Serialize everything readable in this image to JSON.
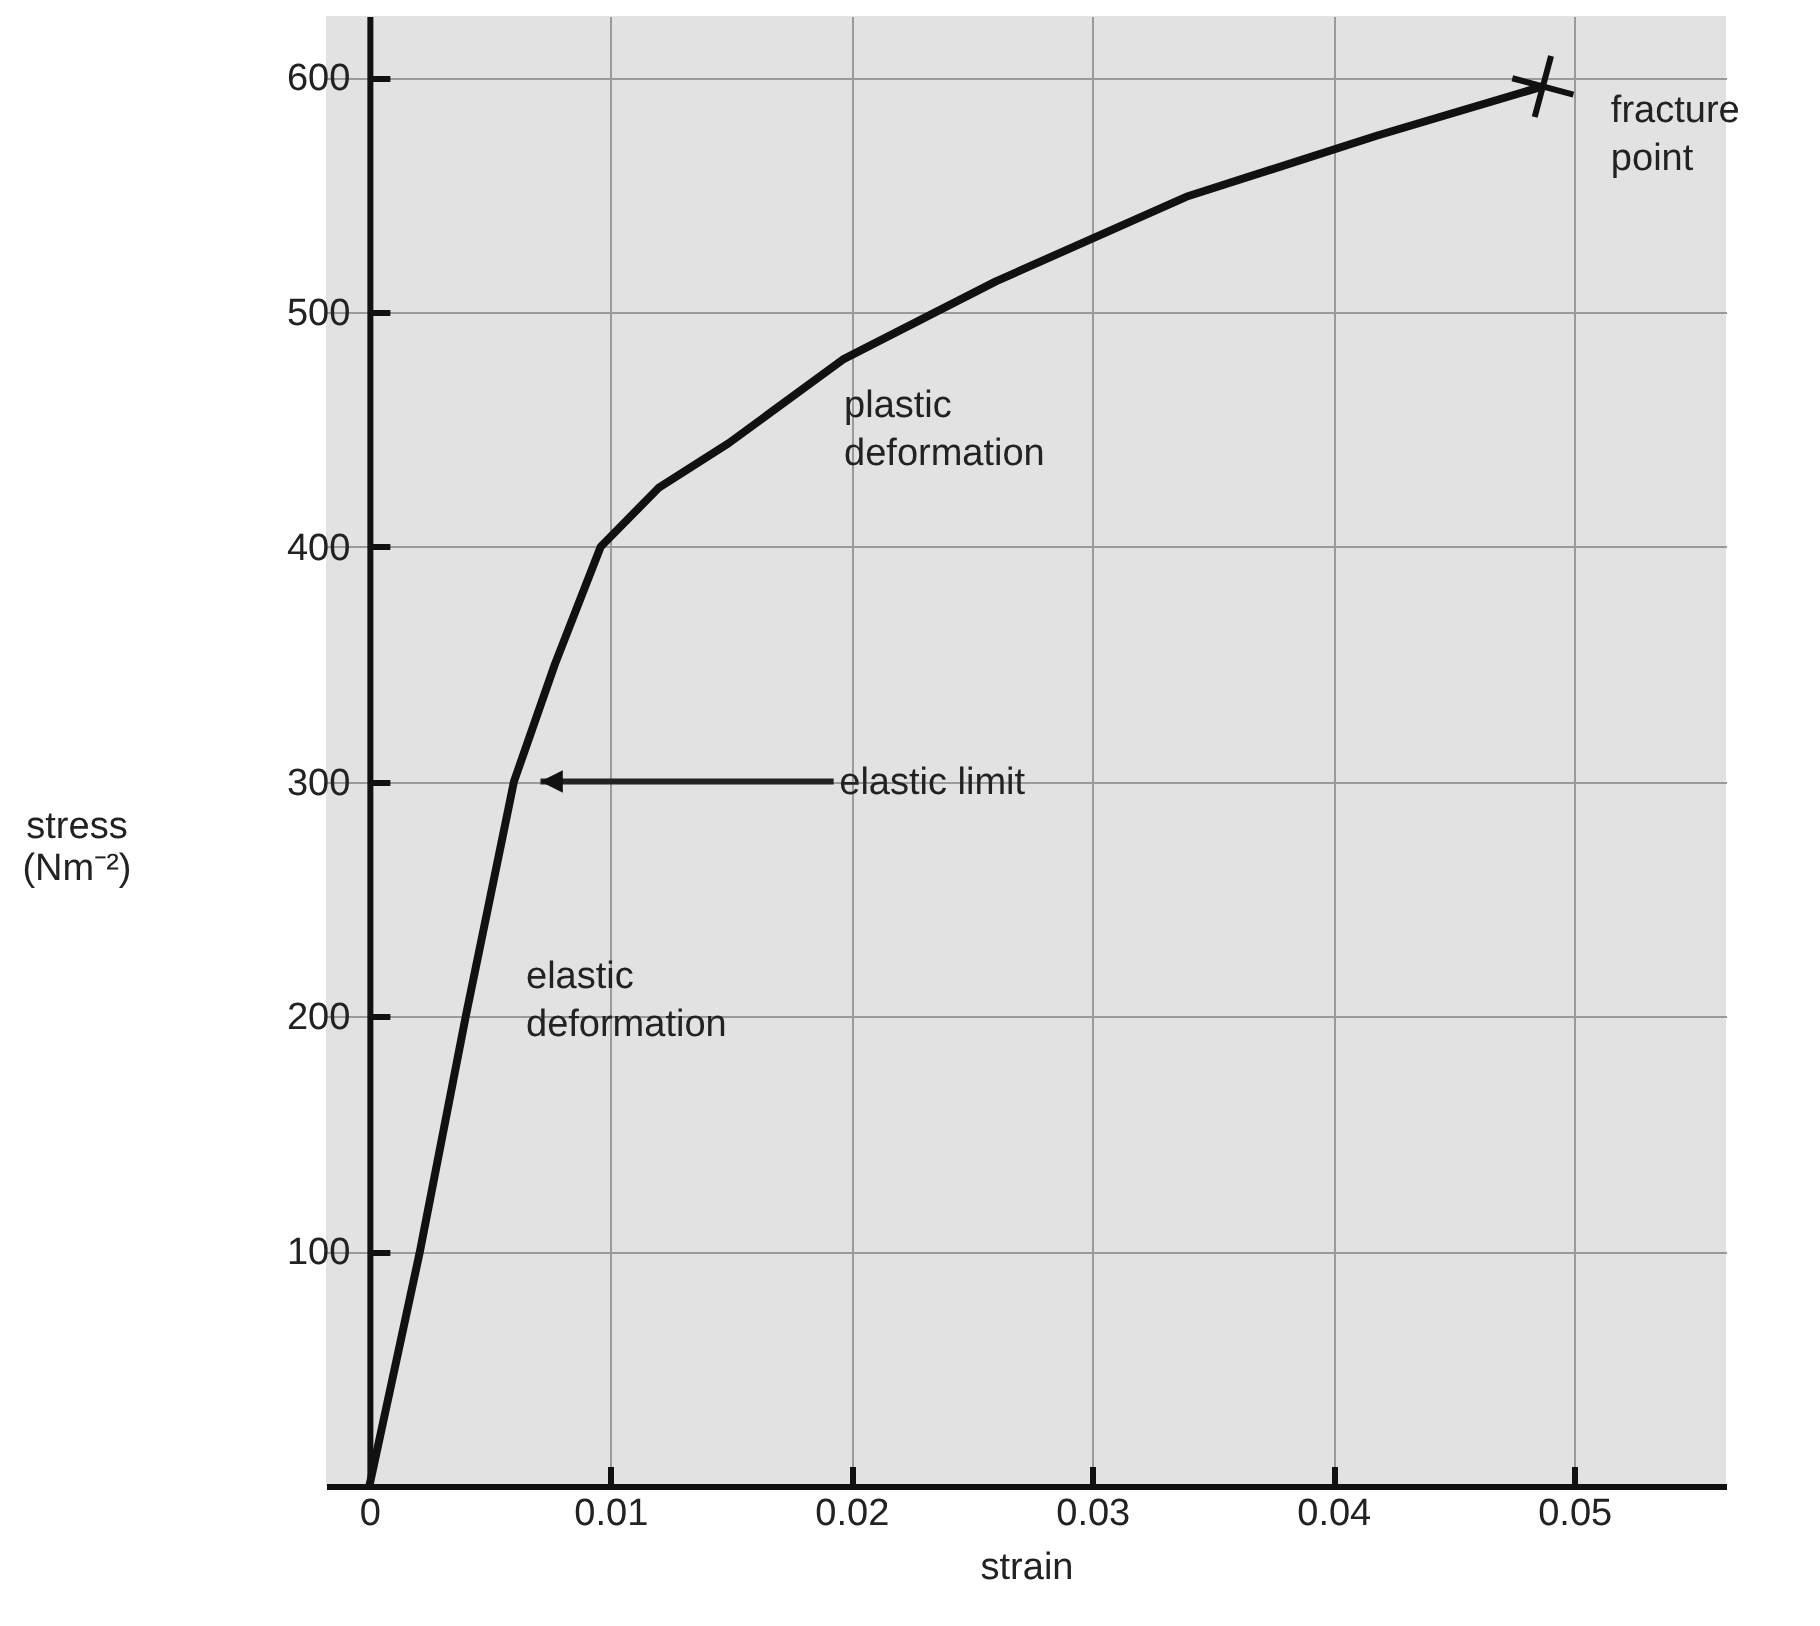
{
  "chart_data": {
    "type": "line",
    "xlabel": "strain",
    "ylabel": "stress (Nm⁻²)",
    "x": [
      0,
      0.0021,
      0.004,
      0.006,
      0.0077,
      0.0096,
      0.012,
      0.0149,
      0.0197,
      0.026,
      0.0339,
      0.0418,
      0.0487
    ],
    "series": [
      {
        "color": "#111111",
        "values": [
          0,
          100,
          200,
          300,
          350,
          400,
          425,
          444,
          480,
          513,
          549,
          575,
          596
        ]
      }
    ],
    "xlim": [
      -0.0018,
      0.0563
    ],
    "ylim": [
      0,
      626
    ],
    "xticks": [
      0,
      0.01,
      0.02,
      0.03,
      0.04,
      0.05
    ],
    "yticks": [
      100,
      200,
      300,
      400,
      500,
      600
    ],
    "grid": true,
    "marker": "none",
    "line_style": "solid",
    "annotations": [
      "elastic deformation",
      "plastic deformation",
      "elastic limit",
      {
        "text": "fracture point",
        "x": 0.0487,
        "y": 596
      }
    ]
  }
}
